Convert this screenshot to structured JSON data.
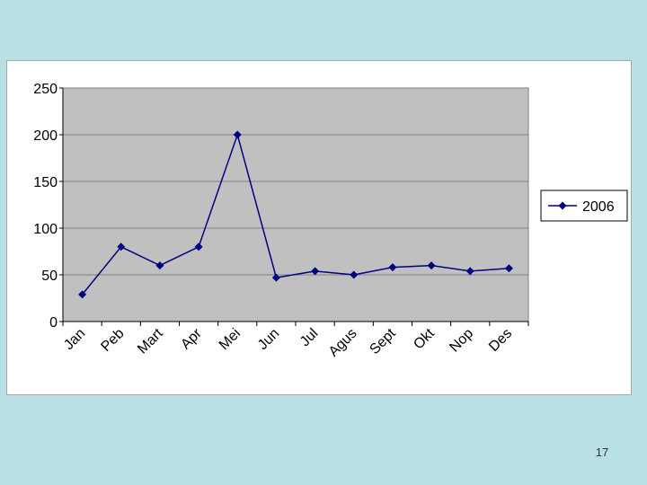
{
  "slide": {
    "number": "17"
  },
  "colors": {
    "background": "#b9e0e4",
    "plot_area": "#c0c0c0",
    "series_line": "#000080",
    "gridline": "#808080"
  },
  "chart_data": {
    "type": "line",
    "title": "",
    "xlabel": "",
    "ylabel": "",
    "categories": [
      "Jan",
      "Peb",
      "Mart",
      "Apr",
      "Mei",
      "Jun",
      "Jul",
      "Agus",
      "Sept",
      "Okt",
      "Nop",
      "Des"
    ],
    "series": [
      {
        "name": "2006",
        "marker": "diamond",
        "values": [
          29,
          80,
          60,
          80,
          200,
          47,
          54,
          50,
          58,
          60,
          54,
          57
        ]
      }
    ],
    "ylim": [
      0,
      250
    ],
    "yticks": [
      "0",
      "50",
      "100",
      "150",
      "200",
      "250"
    ],
    "grid": true,
    "legend": "right"
  }
}
